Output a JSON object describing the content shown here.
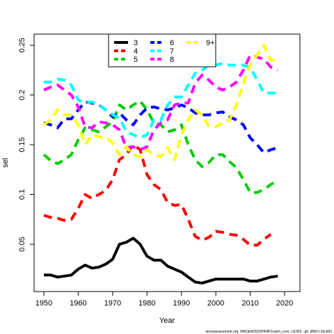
{
  "chart_data": {
    "type": "line",
    "x_label": "Year",
    "y_label": "sel",
    "footnote": "stockassessment.org, WKDEM2020PINROcatch_com, r11903 ; git: df0b7c1bcb83",
    "x": [
      1950,
      1952,
      1954,
      1956,
      1958,
      1960,
      1962,
      1964,
      1966,
      1968,
      1970,
      1972,
      1974,
      1976,
      1978,
      1980,
      1982,
      1984,
      1986,
      1988,
      1990,
      1992,
      1994,
      1996,
      1998,
      2000,
      2002,
      2004,
      2006,
      2008,
      2010,
      2012,
      2014,
      2016,
      2018
    ],
    "series": [
      {
        "name": "3",
        "color": "#000000",
        "linestyle": "solid",
        "values": [
          0.019,
          0.019,
          0.017,
          0.018,
          0.019,
          0.025,
          0.029,
          0.026,
          0.027,
          0.03,
          0.035,
          0.05,
          0.052,
          0.056,
          0.05,
          0.038,
          0.034,
          0.034,
          0.028,
          0.025,
          0.022,
          0.017,
          0.012,
          0.011,
          0.013,
          0.015,
          0.015,
          0.015,
          0.015,
          0.015,
          0.013,
          0.013,
          0.015,
          0.017,
          0.018
        ]
      },
      {
        "name": "4",
        "color": "#ff0000",
        "linestyle": "dashed",
        "values": [
          0.079,
          0.077,
          0.076,
          0.074,
          0.075,
          0.086,
          0.1,
          0.096,
          0.1,
          0.104,
          0.115,
          0.135,
          0.14,
          0.15,
          0.145,
          0.12,
          0.11,
          0.105,
          0.092,
          0.089,
          0.09,
          0.075,
          0.058,
          0.054,
          0.057,
          0.063,
          0.062,
          0.06,
          0.059,
          0.055,
          0.049,
          0.049,
          0.055,
          0.06,
          null
        ]
      },
      {
        "name": "5",
        "color": "#00cd00",
        "linestyle": "dashed",
        "values": [
          0.14,
          0.134,
          0.131,
          0.135,
          0.14,
          0.155,
          0.167,
          0.165,
          0.163,
          0.168,
          0.173,
          0.19,
          0.185,
          0.19,
          0.194,
          0.185,
          0.172,
          0.17,
          0.163,
          0.165,
          0.17,
          0.15,
          0.135,
          0.128,
          0.132,
          0.14,
          0.14,
          0.133,
          0.127,
          0.115,
          0.102,
          0.102,
          0.105,
          0.11,
          0.114
        ]
      },
      {
        "name": "6",
        "color": "#0000ff",
        "linestyle": "dashed",
        "values": [
          0.172,
          0.17,
          0.167,
          0.176,
          0.176,
          0.185,
          0.193,
          0.192,
          0.19,
          0.185,
          0.178,
          0.182,
          0.175,
          0.17,
          0.18,
          0.187,
          0.188,
          0.186,
          0.185,
          0.187,
          0.19,
          0.187,
          0.182,
          0.18,
          0.18,
          0.182,
          0.183,
          0.178,
          0.175,
          0.17,
          0.157,
          0.15,
          0.142,
          0.145,
          0.147
        ]
      },
      {
        "name": "7",
        "color": "#00ffff",
        "linestyle": "dashed",
        "values": [
          0.213,
          0.213,
          0.216,
          0.215,
          0.21,
          0.195,
          0.192,
          0.193,
          0.19,
          0.185,
          0.18,
          0.177,
          0.163,
          0.16,
          0.157,
          0.16,
          0.175,
          0.175,
          0.19,
          0.198,
          0.198,
          0.21,
          0.222,
          0.225,
          0.23,
          0.23,
          0.232,
          0.23,
          0.23,
          0.23,
          0.228,
          0.215,
          0.202,
          0.202,
          0.202
        ]
      },
      {
        "name": "8",
        "color": "#ff00ff",
        "linestyle": "dashed",
        "values": [
          0.205,
          0.208,
          0.21,
          0.205,
          0.2,
          0.188,
          0.168,
          0.167,
          0.173,
          0.172,
          0.17,
          0.165,
          0.147,
          0.148,
          0.145,
          0.148,
          0.165,
          0.172,
          0.175,
          0.19,
          0.192,
          0.192,
          0.212,
          0.22,
          0.215,
          0.208,
          0.205,
          0.208,
          0.213,
          0.225,
          0.24,
          0.238,
          0.236,
          0.228,
          0.225
        ]
      },
      {
        "name": "9+",
        "color": "#ffff00",
        "linestyle": "dashed",
        "values": [
          0.17,
          0.175,
          0.185,
          0.18,
          0.18,
          0.17,
          0.15,
          0.16,
          0.158,
          0.157,
          0.152,
          0.14,
          0.148,
          0.14,
          0.138,
          0.145,
          0.14,
          0.138,
          0.147,
          0.135,
          0.16,
          0.175,
          0.185,
          0.18,
          0.168,
          0.168,
          0.172,
          0.175,
          0.19,
          0.212,
          0.23,
          0.24,
          0.25,
          0.235,
          0.235
        ]
      }
    ],
    "xlim": [
      1947.17,
      2024.45
    ],
    "xticks": [
      1950,
      1960,
      1970,
      1980,
      1990,
      2000,
      2010,
      2020
    ],
    "ylim": [
      0.00245,
      0.2612
    ],
    "yticks": [
      0.05,
      0.1,
      0.15,
      0.2,
      0.25
    ]
  }
}
